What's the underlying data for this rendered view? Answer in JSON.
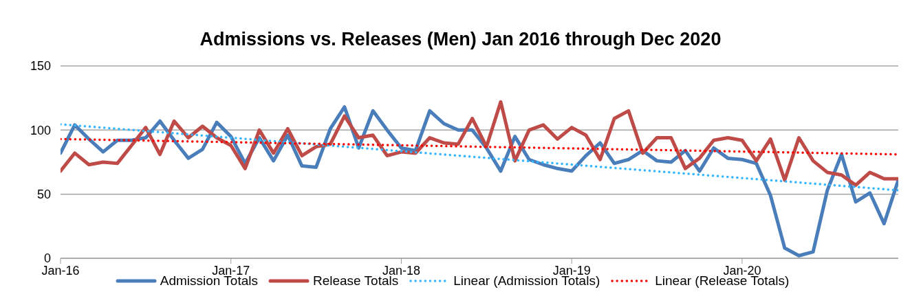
{
  "chart_data": {
    "type": "line",
    "title": "Admissions vs. Releases (Men) Jan 2016 through Dec 2020",
    "categories": [
      "Jan-16",
      null,
      null,
      null,
      null,
      null,
      null,
      null,
      null,
      null,
      null,
      null,
      "Jan-17",
      null,
      null,
      null,
      null,
      null,
      null,
      null,
      null,
      null,
      null,
      null,
      "Jan-18",
      null,
      null,
      null,
      null,
      null,
      null,
      null,
      null,
      null,
      null,
      null,
      "Jan-19",
      null,
      null,
      null,
      null,
      null,
      null,
      null,
      null,
      null,
      null,
      null,
      "Jan-20",
      null,
      null,
      null,
      null,
      null,
      null,
      null,
      null,
      null,
      null,
      null
    ],
    "series": [
      {
        "name": "Admission Totals",
        "color": "#4a7ebb",
        "line_style": "solid",
        "values": [
          82,
          104,
          93,
          83,
          92,
          92,
          94,
          107,
          92,
          78,
          85,
          106,
          95,
          74,
          94,
          76,
          96,
          72,
          71,
          101,
          118,
          86,
          115,
          100,
          86,
          84,
          115,
          105,
          100,
          100,
          86,
          68,
          95,
          77,
          73,
          70,
          68,
          80,
          90,
          74,
          77,
          84,
          76,
          75,
          84,
          68,
          86,
          78,
          77,
          74,
          49,
          8,
          2,
          5,
          53,
          81,
          44,
          51,
          27,
          61
        ]
      },
      {
        "name": "Release Totals",
        "color": "#be4b48",
        "line_style": "solid",
        "values": [
          68,
          82,
          73,
          75,
          74,
          88,
          102,
          81,
          107,
          94,
          103,
          94,
          88,
          70,
          100,
          82,
          101,
          80,
          87,
          89,
          111,
          94,
          96,
          80,
          83,
          82,
          94,
          90,
          89,
          109,
          87,
          122,
          76,
          100,
          104,
          93,
          102,
          96,
          77,
          109,
          115,
          82,
          94,
          94,
          70,
          78,
          92,
          94,
          92,
          76,
          93,
          61,
          94,
          76,
          67,
          65,
          57,
          67,
          62,
          62
        ]
      },
      {
        "name": "Linear (Admission Totals)",
        "color": "#33b5ff",
        "line_style": "dotted",
        "values": [
          104.5,
          null,
          null,
          null,
          null,
          null,
          null,
          null,
          null,
          null,
          null,
          null,
          null,
          null,
          null,
          null,
          null,
          null,
          null,
          null,
          null,
          null,
          null,
          null,
          null,
          null,
          null,
          null,
          null,
          null,
          null,
          null,
          null,
          null,
          null,
          null,
          null,
          null,
          null,
          null,
          null,
          null,
          null,
          null,
          null,
          null,
          null,
          null,
          null,
          null,
          null,
          null,
          null,
          null,
          null,
          null,
          null,
          null,
          null,
          53
        ]
      },
      {
        "name": "Linear (Release Totals)",
        "color": "#ff0000",
        "line_style": "dotted",
        "values": [
          93,
          null,
          null,
          null,
          null,
          null,
          null,
          null,
          null,
          null,
          null,
          null,
          null,
          null,
          null,
          null,
          null,
          null,
          null,
          null,
          null,
          null,
          null,
          null,
          null,
          null,
          null,
          null,
          null,
          null,
          null,
          null,
          null,
          null,
          null,
          null,
          null,
          null,
          null,
          null,
          null,
          null,
          null,
          null,
          null,
          null,
          null,
          null,
          null,
          null,
          null,
          null,
          null,
          null,
          null,
          null,
          null,
          null,
          null,
          81
        ]
      }
    ],
    "ylim": [
      0,
      150
    ],
    "yticks": [
      0,
      50,
      100,
      150
    ],
    "grid": "y",
    "legend": "bottom",
    "marker": "none"
  }
}
